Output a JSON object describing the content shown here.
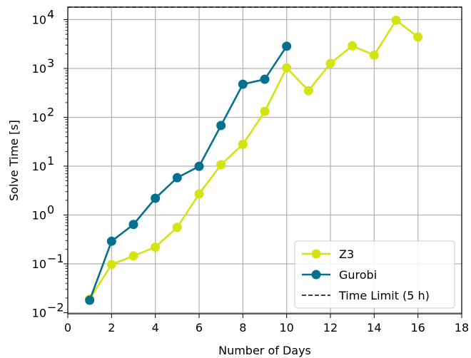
{
  "chart_data": {
    "type": "line",
    "xlabel": "Number of Days",
    "ylabel": "Solve Time [s]",
    "yscale": "log",
    "xlim": [
      0,
      18
    ],
    "ylim": [
      0.0095,
      18000
    ],
    "xticks": [
      0,
      2,
      4,
      6,
      8,
      10,
      12,
      14,
      16,
      18
    ],
    "yticks": [
      {
        "value": 0.01,
        "base": "10",
        "exp": "−2"
      },
      {
        "value": 0.1,
        "base": "10",
        "exp": "−1"
      },
      {
        "value": 1,
        "base": "10",
        "exp": "0"
      },
      {
        "value": 10,
        "base": "10",
        "exp": "1"
      },
      {
        "value": 100,
        "base": "10",
        "exp": "2"
      },
      {
        "value": 1000,
        "base": "10",
        "exp": "3"
      },
      {
        "value": 10000,
        "base": "10",
        "exp": "4"
      }
    ],
    "grid": true,
    "legend_position": "bottom-right",
    "series": [
      {
        "name": "Z3",
        "color": "#d4e412",
        "x": [
          1,
          2,
          3,
          4,
          5,
          6,
          7,
          8,
          9,
          10,
          11,
          12,
          13,
          14,
          15,
          16
        ],
        "y": [
          0.019,
          0.097,
          0.145,
          0.22,
          0.56,
          2.7,
          10.7,
          28,
          132,
          1030,
          350,
          1270,
          2900,
          1870,
          9700,
          4400
        ]
      },
      {
        "name": "Gurobi",
        "color": "#06708f",
        "x": [
          1,
          2,
          3,
          4,
          5,
          6,
          7,
          8,
          9,
          10
        ],
        "y": [
          0.018,
          0.29,
          0.64,
          2.2,
          5.8,
          9.9,
          68,
          475,
          600,
          2850
        ]
      }
    ],
    "hlines": [
      {
        "name": "Time Limit (5 h)",
        "y": 18000,
        "color": "#000000",
        "style": "dashed"
      }
    ]
  }
}
